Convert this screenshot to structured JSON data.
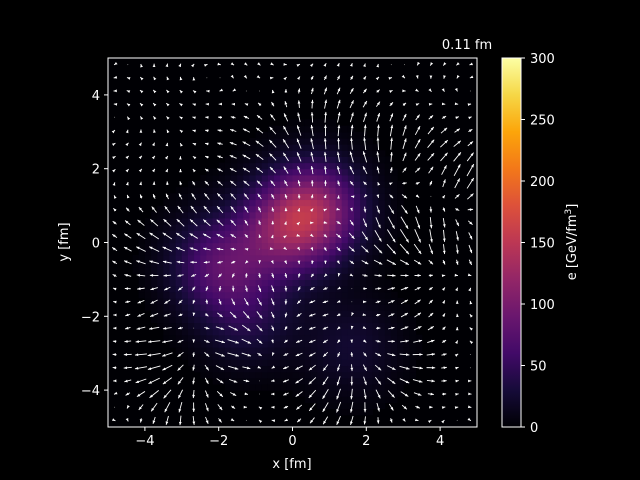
{
  "chart_data": {
    "type": "heatmap",
    "subtype": "energy density with velocity quiver overlay",
    "annotation": "0.11 fm",
    "xlabel": "x [fm]",
    "ylabel": "y [fm]",
    "xlim": [
      -5,
      5
    ],
    "ylim": [
      -5,
      5
    ],
    "x_ticks": [
      "−4",
      "−2",
      "0",
      "2",
      "4"
    ],
    "x_tick_values": [
      -4,
      -2,
      0,
      2,
      4
    ],
    "y_ticks": [
      "−4",
      "−2",
      "0",
      "2",
      "4"
    ],
    "y_tick_values": [
      -4,
      -2,
      0,
      2,
      4
    ],
    "colorbar": {
      "label": "e [GeV/fm",
      "label_sup": "3",
      "label_end": "]",
      "range": [
        0,
        300
      ],
      "colormap": "inferno",
      "ticks": [
        "0",
        "50",
        "100",
        "150",
        "200",
        "250",
        "300"
      ],
      "tick_values": [
        0,
        50,
        100,
        150,
        200,
        250,
        300
      ]
    },
    "energy_peaks": [
      {
        "x": 0.6,
        "y": 0.9,
        "value": 110
      },
      {
        "x": -0.3,
        "y": 0.3,
        "value": 75
      },
      {
        "x": -2.0,
        "y": -0.6,
        "value": 70
      },
      {
        "x": -1.2,
        "y": -2.0,
        "value": 35
      },
      {
        "x": 1.6,
        "y": -2.8,
        "value": 25
      }
    ],
    "flow_sources": [
      {
        "x": 0.6,
        "y": 0.9,
        "extent": 3.0
      },
      {
        "x": -2.3,
        "y": -1.0,
        "extent": 2.4
      },
      {
        "x": 3.2,
        "y": 1.6,
        "extent": 1.8
      },
      {
        "x": 1.8,
        "y": -2.8,
        "extent": 2.2
      },
      {
        "x": -2.8,
        "y": -3.5,
        "extent": 1.6
      },
      {
        "x": 4.8,
        "y": 0.8,
        "extent": 1.4
      }
    ],
    "grid": false,
    "background": "#000000",
    "arrow_color": "#ffffff"
  }
}
